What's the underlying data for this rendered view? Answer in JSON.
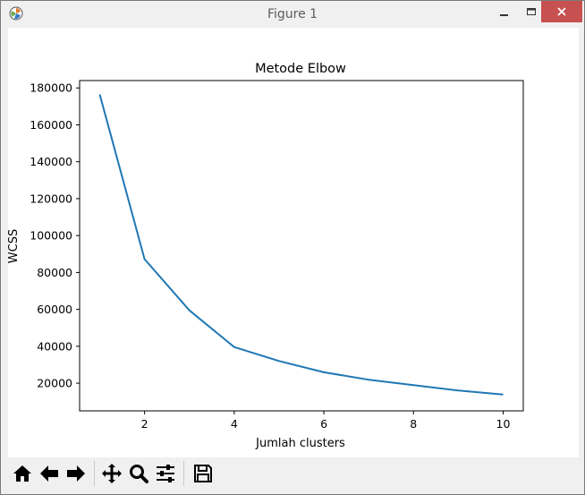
{
  "window": {
    "title": "Figure 1",
    "close_color": "#c75050"
  },
  "toolbar": {
    "buttons": [
      "home-icon",
      "back-arrow-icon",
      "forward-arrow-icon",
      "pan-move-icon",
      "zoom-magnifier-icon",
      "subplot-config-sliders-icon",
      "save-floppy-icon"
    ]
  },
  "chart_data": {
    "type": "line",
    "title": "Metode Elbow",
    "xlabel": "Jumlah clusters",
    "ylabel": "WCSS",
    "x": [
      1,
      2,
      3,
      4,
      5,
      6,
      7,
      8,
      9,
      10
    ],
    "series": [
      {
        "values": [
          176500,
          87200,
          59500,
          39600,
          32000,
          25900,
          21900,
          18900,
          16000,
          13900
        ],
        "color": "#1f77b4"
      }
    ],
    "xlim": [
      0.55,
      10.45
    ],
    "ylim": [
      5000,
      184000
    ],
    "xticks": [
      2,
      4,
      6,
      8,
      10
    ],
    "xtick_labels": [
      "2",
      "4",
      "6",
      "8",
      "10"
    ],
    "yticks": [
      20000,
      40000,
      60000,
      80000,
      100000,
      120000,
      140000,
      160000,
      180000
    ],
    "ytick_labels": [
      "20000",
      "40000",
      "60000",
      "80000",
      "100000",
      "120000",
      "140000",
      "160000",
      "180000"
    ],
    "grid": false,
    "legend": "none"
  }
}
